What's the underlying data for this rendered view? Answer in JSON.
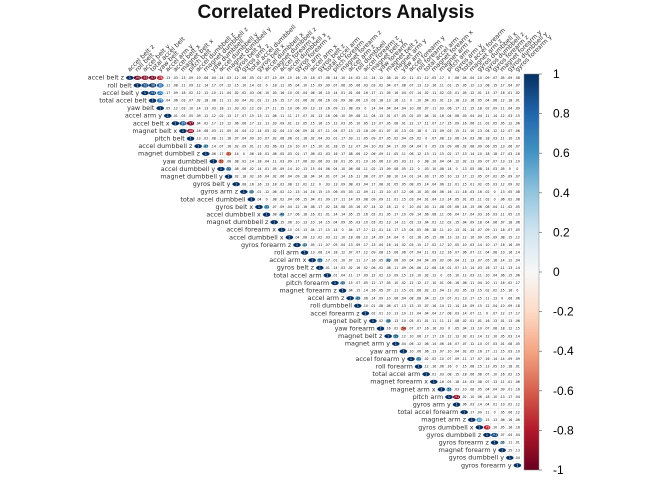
{
  "chart_data": {
    "type": "heatmap",
    "title": "Correlated Predictors Analysis",
    "variables": [
      "accel_belt_z",
      "roll_belt",
      "accel_belt_y",
      "total_accel_belt",
      "yaw_belt",
      "accel_arm_y",
      "accel_belt_x",
      "magnet_belt_x",
      "pitch_belt",
      "accel_dumbbell_z",
      "magnet_dumbbell_z",
      "yaw_dumbbell",
      "accel_dumbbell_y",
      "magnet_dumbbell_y",
      "gyros_belt_y",
      "gyros_arm_z",
      "total_accel_dumbbell",
      "gyros_belt_x",
      "accel_dumbbell_x",
      "magnet_dumbbell_z2",
      "accel_forearm_x",
      "accel_dumbbell_x2",
      "gyros_forearm_z",
      "roll_arm",
      "accel_arm_x",
      "gyros_belt_z",
      "total_accel_arm",
      "pitch_forearm",
      "magnet_forearm_z",
      "accel_arm_z",
      "roll_dumbbell",
      "accel_forearm_z",
      "magnet_belt_y",
      "yaw_forearm",
      "magnet_belt_z",
      "magnet_arm_y",
      "yaw_arm",
      "accel_forearm_y",
      "roll_forearm",
      "total_accel_arm2",
      "magnet_forearm_x",
      "magnet_arm_x",
      "pitch_arm",
      "gyros_arm_y",
      "total_accel_forearm",
      "magnet_arm_z",
      "gyros_dumbbell_x",
      "gyros_dumbbell_z",
      "gyros_forearm_z2",
      "magnet_forearm_y",
      "gyros_dumbbell_y",
      "gyros_forearm_y"
    ],
    "row_labels": [
      "accel_belt_z",
      "roll_belt",
      "accel_belt_y",
      "total_accel_belt",
      "yaw_belt",
      "accel_arm_y",
      "accel_belt_x",
      "magnet_belt_x",
      "pitch_belt",
      "accel_dumbbell_z",
      "magnet_dumbbell_z",
      "yaw_dumbbell",
      "accel_dumbbell_y",
      "magnet_dumbbell_y",
      "gyros_belt_y",
      "gyros_arm_z",
      "total_accel_dumbbell",
      "gyros_belt_x",
      "accel_dumbbell_x",
      "magnet_dumbbell_z",
      "accel_forearm_x",
      "accel_dumbbell_x",
      "gyros_forearm_z",
      "roll_arm",
      "accel_arm_x",
      "gyros_belt_z",
      "total_accel_arm",
      "pitch_forearm",
      "magnet_forearm_z",
      "accel_arm_z",
      "roll_dumbbell",
      "accel_forearm_z",
      "magnet_belt_y",
      "yaw_forearm",
      "magnet_belt_z",
      "magnet_arm_y",
      "yaw_arm",
      "accel_forearm_y",
      "roll_forearm",
      "total_accel_arm",
      "magnet_forearm_x",
      "magnet_arm_x",
      "pitch_arm",
      "gyros_arm_y",
      "total_accel_forearm",
      "magnet_arm_z",
      "gyros_dumbbell_x",
      "gyros_dumbbell_z",
      "gyros_forearm_z",
      "magnet_forearm_y",
      "gyros_dumbbell_y",
      "gyros_forearm_y"
    ],
    "strong_pairs": [
      {
        "row": 0,
        "col": 1,
        "value": -0.99
      },
      {
        "row": 0,
        "col": 2,
        "value": -0.93
      },
      {
        "row": 0,
        "col": 3,
        "value": -0.97
      },
      {
        "row": 0,
        "col": 4,
        "value": -0.78
      },
      {
        "row": 1,
        "col": 2,
        "value": 0.92
      },
      {
        "row": 1,
        "col": 3,
        "value": 0.98
      },
      {
        "row": 1,
        "col": 4,
        "value": 0.82
      },
      {
        "row": 2,
        "col": 3,
        "value": 0.93
      },
      {
        "row": 2,
        "col": 4,
        "value": 0.7
      },
      {
        "row": 3,
        "col": 4,
        "value": 0.76
      },
      {
        "row": 6,
        "col": 7,
        "value": 0.89
      },
      {
        "row": 6,
        "col": 8,
        "value": -0.97
      },
      {
        "row": 7,
        "col": 8,
        "value": -0.88
      },
      {
        "row": 9,
        "col": 10,
        "value": 0.47
      },
      {
        "row": 10,
        "col": 13,
        "value": -0.51
      },
      {
        "row": 11,
        "col": 12,
        "value": -0.52
      },
      {
        "row": 12,
        "col": 13,
        "value": 0.52
      },
      {
        "row": 15,
        "col": 16,
        "value": 0.45
      },
      {
        "row": 17,
        "col": 18,
        "value": 0.51
      },
      {
        "row": 18,
        "col": 20,
        "value": 0.46
      },
      {
        "row": 22,
        "col": 23,
        "value": 0.43
      },
      {
        "row": 24,
        "col": 25,
        "value": 0.55
      },
      {
        "row": 24,
        "col": 34,
        "value": 0.43
      },
      {
        "row": 27,
        "col": 28,
        "value": 0.45
      },
      {
        "row": 29,
        "col": 30,
        "value": 0.49
      },
      {
        "row": 32,
        "col": 34,
        "value": 0.48
      },
      {
        "row": 33,
        "col": 36,
        "value": -0.54
      },
      {
        "row": 34,
        "col": 35,
        "value": 0.55
      },
      {
        "row": 37,
        "col": 38,
        "value": 0.51
      },
      {
        "row": 41,
        "col": 42,
        "value": 0.51
      },
      {
        "row": 42,
        "col": 43,
        "value": -0.91
      },
      {
        "row": 45,
        "col": 46,
        "value": 0.6
      },
      {
        "row": 46,
        "col": 47,
        "value": -0.79
      },
      {
        "row": 47,
        "col": 48,
        "value": 0.91
      },
      {
        "row": 48,
        "col": 49,
        "value": 0.36
      },
      {
        "row": 49,
        "col": 50,
        "value": 0.25
      },
      {
        "row": 50,
        "col": 51,
        "value": 0.04
      }
    ],
    "colorbar": {
      "min": -1,
      "max": 1,
      "ticks": [
        -1,
        -0.8,
        -0.6,
        -0.4,
        -0.2,
        0,
        0.2,
        0.4,
        0.6,
        0.8,
        1
      ],
      "tick_labels": [
        "-1",
        "-0.8",
        "-0.6",
        "-0.4",
        "-0.2",
        "0",
        "0.2",
        "0.4",
        "0.6",
        "0.8",
        "1"
      ],
      "negative_color": "#67001F",
      "positive_color": "#053061",
      "neutral_color": "#F7F7F7"
    },
    "layout": "upper-triangle",
    "legend": "right",
    "grid": true
  }
}
